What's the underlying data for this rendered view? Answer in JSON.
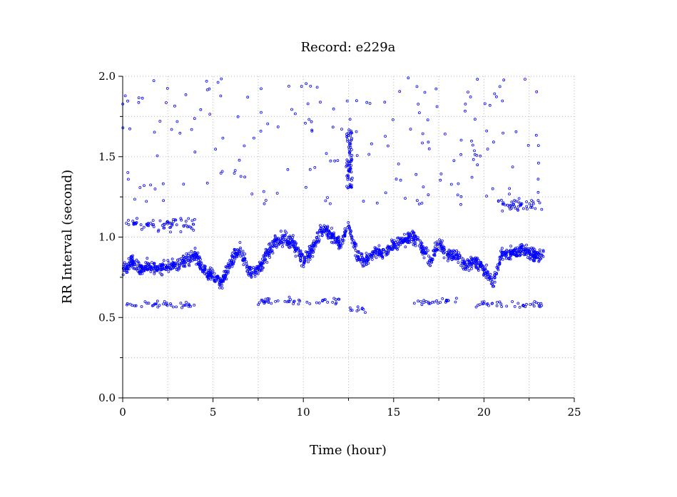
{
  "chart_data": {
    "type": "scatter",
    "title": "Record:  e229a",
    "xlabel": "Time (hour)",
    "ylabel": "RR Interval (second)",
    "xlim": [
      0,
      25
    ],
    "ylim": [
      0,
      2
    ],
    "x_ticks": [
      {
        "value": 0,
        "label": "0"
      },
      {
        "value": 5,
        "label": "5"
      },
      {
        "value": 10,
        "label": "10"
      },
      {
        "value": 15,
        "label": "15"
      },
      {
        "value": 20,
        "label": "20"
      },
      {
        "value": 25,
        "label": "25"
      }
    ],
    "x_minor_ticks": [
      2.5,
      7.5,
      12.5,
      17.5,
      22.5
    ],
    "y_ticks": [
      {
        "value": 0,
        "label": "0.0"
      },
      {
        "value": 0.5,
        "label": "0.5"
      },
      {
        "value": 1,
        "label": "1.0"
      },
      {
        "value": 1.5,
        "label": "1.5"
      },
      {
        "value": 2,
        "label": "2.0"
      }
    ],
    "y_minor_ticks": [
      0.25,
      0.75,
      1.25,
      1.75
    ],
    "grid": true,
    "marker": "open-circle",
    "color": "#0000ff",
    "main_trend": {
      "x": [
        0,
        0.5,
        1,
        1.5,
        2,
        2.5,
        3,
        3.5,
        4,
        4.5,
        5,
        5.5,
        6,
        6.5,
        7,
        7.5,
        8,
        8.5,
        9,
        9.5,
        10,
        10.5,
        11,
        11.5,
        12,
        12.5,
        13,
        13.5,
        14,
        14.5,
        15,
        15.5,
        16,
        16.5,
        17,
        17.5,
        18,
        18.5,
        19,
        19.5,
        20,
        20.5,
        21,
        21.5,
        22,
        22.5,
        23,
        23.3
      ],
      "y": [
        0.8,
        0.85,
        0.8,
        0.82,
        0.8,
        0.83,
        0.82,
        0.86,
        0.88,
        0.8,
        0.75,
        0.72,
        0.85,
        0.92,
        0.78,
        0.8,
        0.9,
        0.98,
        1.0,
        0.95,
        0.85,
        0.92,
        1.05,
        1.02,
        0.95,
        1.08,
        0.88,
        0.85,
        0.92,
        0.9,
        0.95,
        0.98,
        1.0,
        0.95,
        0.85,
        0.95,
        0.9,
        0.88,
        0.82,
        0.85,
        0.8,
        0.72,
        0.9,
        0.9,
        0.92,
        0.9,
        0.88,
        0.9
      ],
      "spread": 0.06,
      "points_per_hour": 70
    },
    "ectopic_high_band": {
      "segments": [
        [
          0.2,
          4.0,
          1.08
        ],
        [
          20.8,
          23.2,
          1.2
        ]
      ],
      "spread": 0.06,
      "points_per_hour": 18
    },
    "ectopic_low_band": {
      "segments": [
        [
          0.2,
          4.0,
          0.58
        ],
        [
          7.5,
          12.0,
          0.6
        ],
        [
          12.5,
          13.5,
          0.55
        ],
        [
          16.0,
          18.5,
          0.6
        ],
        [
          19.5,
          23.2,
          0.58
        ]
      ],
      "spread": 0.03,
      "points_per_hour": 10
    },
    "burst": {
      "x_range": [
        12.4,
        12.7
      ],
      "y_range": [
        1.3,
        1.68
      ],
      "count": 70
    },
    "outliers": {
      "x_range": [
        0,
        23.2
      ],
      "y_range": [
        1.2,
        1.99
      ],
      "count": 190
    }
  }
}
